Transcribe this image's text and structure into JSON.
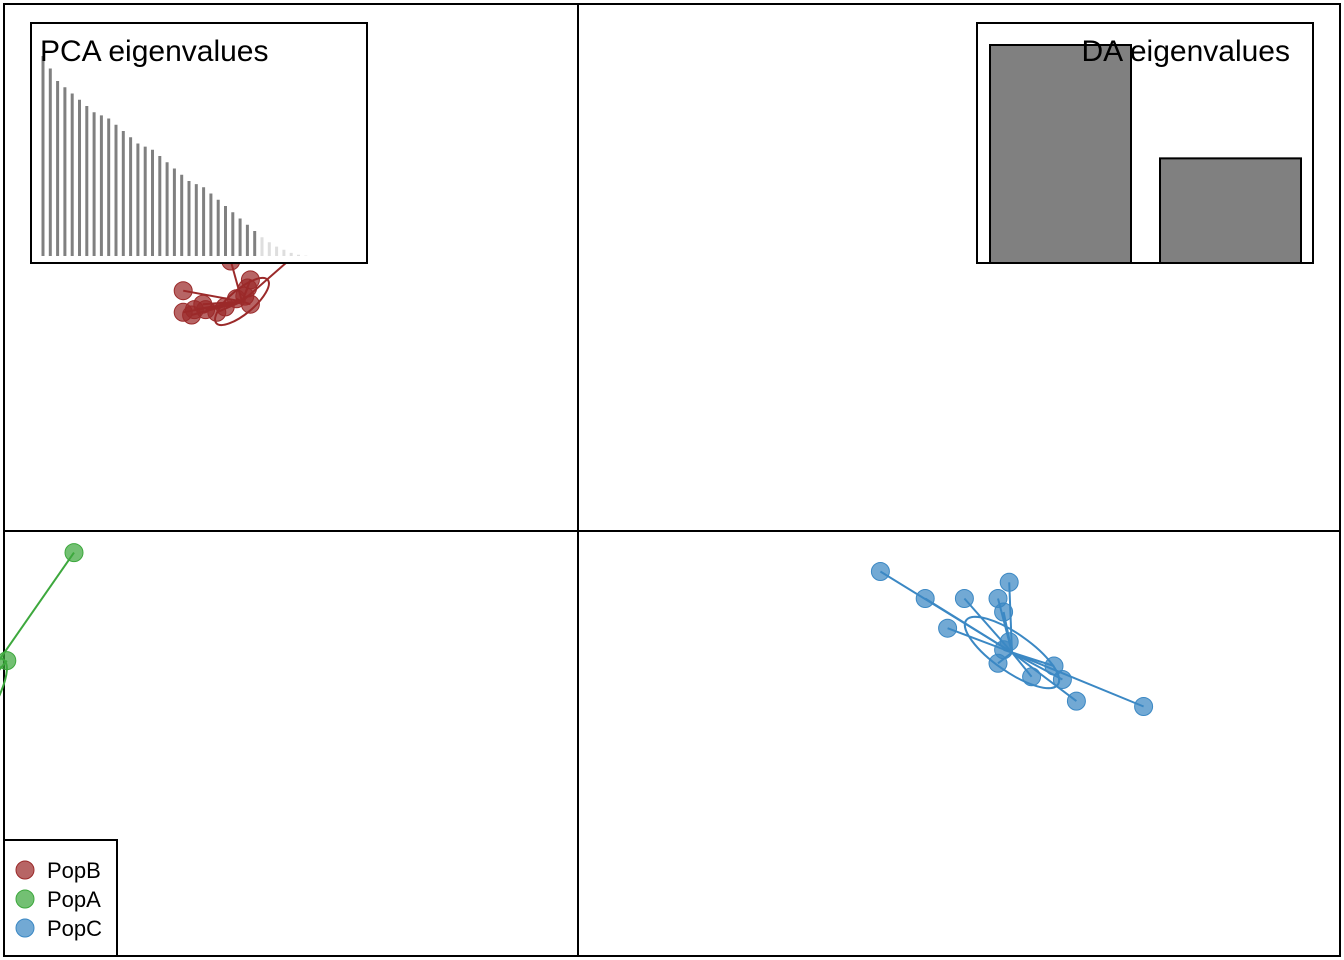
{
  "chart_data": [
    {
      "type": "scatter",
      "subtype": "dapc-scatter",
      "grid": false,
      "series": [
        {
          "name": "PopB",
          "color": "#9B2A2A",
          "centroid": [
            -12.0,
            8.5
          ],
          "ellipse": {
            "cx": -12.0,
            "cy": 8.5,
            "rx": 1.2,
            "ry": 0.45,
            "angle_deg": 40
          },
          "points": [
            [
              -14.1,
              8.9
            ],
            [
              -12.4,
              10.0
            ],
            [
              -9.8,
              10.5
            ],
            [
              -11.7,
              9.3
            ],
            [
              -11.8,
              9.0
            ],
            [
              -13.4,
              8.4
            ],
            [
              -13.7,
              8.2
            ],
            [
              -14.1,
              8.1
            ],
            [
              -13.8,
              8.0
            ],
            [
              -12.9,
              8.1
            ],
            [
              -11.9,
              8.7
            ],
            [
              -11.7,
              8.4
            ],
            [
              -12.2,
              8.6
            ],
            [
              -12.6,
              8.3
            ],
            [
              -13.3,
              8.2
            ]
          ]
        },
        {
          "name": "PopA",
          "color": "#3DA83D",
          "centroid": [
            -22.5,
            -7.5
          ],
          "ellipse": {
            "cx": -22.5,
            "cy": -7.5,
            "rx": 3.3,
            "ry": 0.9,
            "angle_deg": 53
          },
          "points": [
            [
              -18.0,
              -0.8
            ],
            [
              -20.4,
              -4.8
            ],
            [
              -22.4,
              -5.0
            ],
            [
              -22.4,
              -5.3
            ],
            [
              -22.3,
              -6.5
            ],
            [
              -22.0,
              -6.8
            ],
            [
              -24.7,
              -7.4
            ],
            [
              -25.3,
              -8.7
            ],
            [
              -26.6,
              -9.2
            ],
            [
              -23.4,
              -9.6
            ],
            [
              -22.7,
              -9.9
            ],
            [
              -23.4,
              -10.3
            ],
            [
              -24.8,
              -8.9
            ],
            [
              -22.9,
              -6.6
            ],
            [
              -22.6,
              -7.0
            ]
          ]
        },
        {
          "name": "PopC",
          "color": "#3B88C4",
          "centroid": [
            15.5,
            -4.5
          ],
          "ellipse": {
            "cx": 15.5,
            "cy": -4.5,
            "rx": 2.0,
            "ry": 0.7,
            "angle_deg": -35
          },
          "points": [
            [
              10.8,
              -1.5
            ],
            [
              12.4,
              -2.5
            ],
            [
              13.8,
              -2.5
            ],
            [
              15.0,
              -2.5
            ],
            [
              15.4,
              -1.9
            ],
            [
              15.2,
              -3.0
            ],
            [
              13.2,
              -3.6
            ],
            [
              15.4,
              -4.1
            ],
            [
              15.2,
              -4.4
            ],
            [
              15.0,
              -4.9
            ],
            [
              17.0,
              -5.0
            ],
            [
              16.2,
              -5.4
            ],
            [
              17.3,
              -5.5
            ],
            [
              17.8,
              -6.3
            ],
            [
              20.2,
              -6.5
            ]
          ]
        }
      ],
      "legend": {
        "placement": "bottom-left",
        "entries": [
          "PopB",
          "PopA",
          "PopC"
        ]
      },
      "insets": [
        {
          "title": "PCA eigenvalues",
          "placement": "top-left",
          "type": "bar",
          "values": [
            32,
            30,
            28,
            27,
            26,
            25,
            24,
            23,
            22.5,
            22,
            21,
            20,
            19,
            18,
            17.5,
            17,
            16,
            15,
            14,
            13,
            12,
            11.5,
            11,
            10,
            9,
            8,
            7,
            6,
            5,
            4,
            3,
            2.2,
            1.5,
            1,
            0.5,
            0.2,
            0.05,
            0,
            0,
            0
          ],
          "sorted": "descending",
          "retained": 30,
          "retained_color": "#808080",
          "discarded_color": "#DEDEDE"
        },
        {
          "title": "DA eigenvalues",
          "placement": "top-right",
          "type": "bar",
          "values": [
            100,
            48
          ],
          "color": "#808080"
        }
      ]
    }
  ]
}
